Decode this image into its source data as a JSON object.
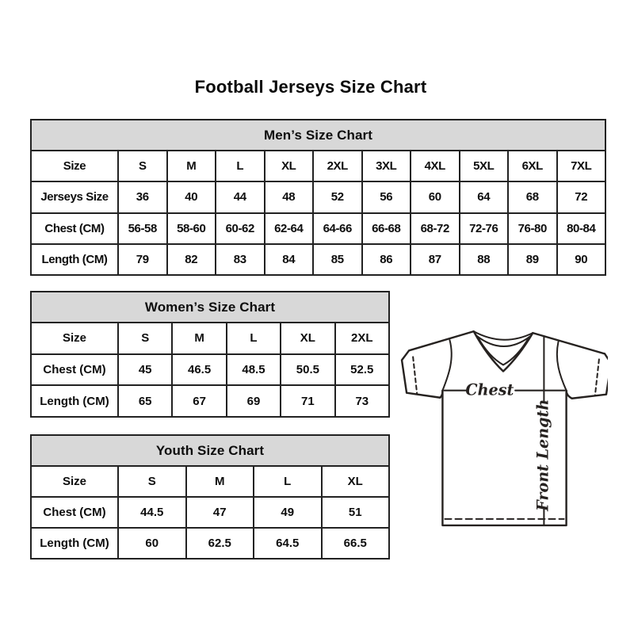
{
  "page": {
    "title": "Football Jerseys Size Chart"
  },
  "tables": {
    "mens": {
      "title": "Men’s Size Chart",
      "rows": [
        {
          "label": "Size",
          "values": [
            "S",
            "M",
            "L",
            "XL",
            "2XL",
            "3XL",
            "4XL",
            "5XL",
            "6XL",
            "7XL"
          ]
        },
        {
          "label": "Jerseys Size",
          "values": [
            "36",
            "40",
            "44",
            "48",
            "52",
            "56",
            "60",
            "64",
            "68",
            "72"
          ]
        },
        {
          "label": "Chest (CM)",
          "values": [
            "56-58",
            "58-60",
            "60-62",
            "62-64",
            "64-66",
            "66-68",
            "68-72",
            "72-76",
            "76-80",
            "80-84"
          ]
        },
        {
          "label": "Length (CM)",
          "values": [
            "79",
            "82",
            "83",
            "84",
            "85",
            "86",
            "87",
            "88",
            "89",
            "90"
          ]
        }
      ]
    },
    "womens": {
      "title": "Women’s Size Chart",
      "rows": [
        {
          "label": "Size",
          "values": [
            "S",
            "M",
            "L",
            "XL",
            "2XL"
          ]
        },
        {
          "label": "Chest (CM)",
          "values": [
            "45",
            "46.5",
            "48.5",
            "50.5",
            "52.5"
          ]
        },
        {
          "label": "Length (CM)",
          "values": [
            "65",
            "67",
            "69",
            "71",
            "73"
          ]
        }
      ]
    },
    "youth": {
      "title": "Youth Size Chart",
      "rows": [
        {
          "label": "Size",
          "values": [
            "S",
            "M",
            "L",
            "XL"
          ]
        },
        {
          "label": "Chest (CM)",
          "values": [
            "44.5",
            "47",
            "49",
            "51"
          ]
        },
        {
          "label": "Length (CM)",
          "values": [
            "60",
            "62.5",
            "64.5",
            "66.5"
          ]
        }
      ]
    }
  },
  "diagram": {
    "chest_label": "Chest",
    "front_length_label": "Front Length"
  },
  "colors": {
    "background": "#ffffff",
    "header_bg": "#d8d8d8",
    "table_border": "#222222",
    "text": "#0d0d0d",
    "diagram_stroke": "#262220"
  }
}
